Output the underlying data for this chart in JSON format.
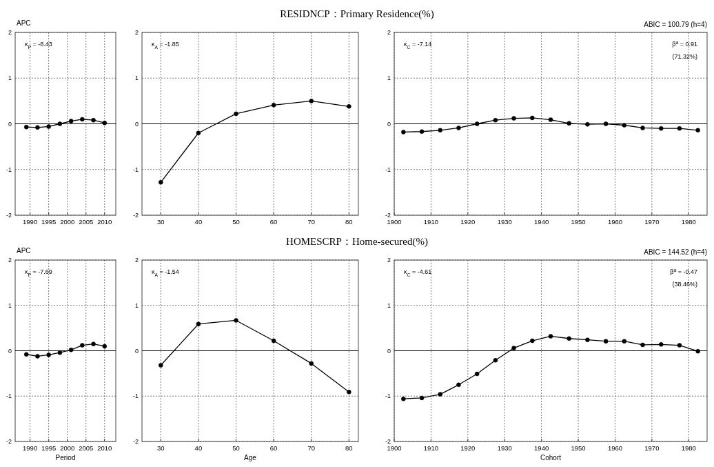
{
  "chart_data": [
    {
      "type": "line",
      "ylabel": "APC",
      "x": [
        1989,
        1992,
        1995,
        1998,
        2001,
        2004,
        2007,
        2010
      ],
      "xlim": [
        1986,
        2013
      ],
      "xticks": [
        1990,
        1995,
        2000,
        2005,
        2010
      ],
      "ylim": [
        -2,
        2
      ],
      "yticks": [
        -2,
        -1,
        0,
        1,
        2
      ],
      "grid": true,
      "marker": "circle",
      "ref_lines": [
        {
          "axis": "y",
          "value": 0
        }
      ],
      "annotations": [
        "κ$_{P}$ = -8.43"
      ],
      "series": [
        {
          "color": "#000000",
          "values": [
            -0.07,
            -0.08,
            -0.06,
            0.0,
            0.06,
            0.1,
            0.08,
            0.02
          ]
        }
      ]
    },
    {
      "type": "line",
      "title": "RESIDNCP：Primary Residence(%)",
      "x": [
        30,
        40,
        50,
        60,
        70,
        80
      ],
      "xlim": [
        25,
        82.5
      ],
      "xticks": [
        30,
        40,
        50,
        60,
        70,
        80
      ],
      "ylim": [
        -2,
        2
      ],
      "yticks": [
        -2,
        -1,
        0,
        1,
        2
      ],
      "grid": true,
      "marker": "circle",
      "ref_lines": [
        {
          "axis": "y",
          "value": 0
        }
      ],
      "annotations": [
        "κ$_{A}$ = -1.85"
      ],
      "series": [
        {
          "color": "#000000",
          "values": [
            -1.28,
            -0.2,
            0.22,
            0.41,
            0.5,
            0.38
          ]
        }
      ]
    },
    {
      "type": "line",
      "subtitle": "ABIC = 100.79 (h=4)",
      "x": [
        1902.5,
        1907.5,
        1912.5,
        1917.5,
        1922.5,
        1927.5,
        1932.5,
        1937.5,
        1942.5,
        1947.5,
        1952.5,
        1957.5,
        1962.5,
        1967.5,
        1972.5,
        1977.5,
        1982.5
      ],
      "xlim": [
        1900,
        1985
      ],
      "xticks": [
        1900,
        1910,
        1920,
        1930,
        1940,
        1950,
        1960,
        1970,
        1980
      ],
      "ylim": [
        -2,
        2
      ],
      "yticks": [
        -2,
        -1,
        0,
        1,
        2
      ],
      "grid": true,
      "marker": "circle",
      "ref_lines": [
        {
          "axis": "y",
          "value": 0
        }
      ],
      "annotations": [
        "κ$_{C}$ = -7.14",
        "β$^{a}$ = 0.91",
        "(71.32%)"
      ],
      "series": [
        {
          "color": "#000000",
          "values": [
            -0.18,
            -0.17,
            -0.14,
            -0.09,
            0.0,
            0.08,
            0.12,
            0.13,
            0.09,
            0.01,
            -0.01,
            0.0,
            -0.03,
            -0.09,
            -0.1,
            -0.1,
            -0.14
          ]
        }
      ]
    },
    {
      "type": "line",
      "ylabel": "APC",
      "xlabel": "Period",
      "x": [
        1989,
        1992,
        1995,
        1998,
        2001,
        2004,
        2007,
        2010
      ],
      "xlim": [
        1986,
        2013
      ],
      "xticks": [
        1990,
        1995,
        2000,
        2005,
        2010
      ],
      "ylim": [
        -2,
        2
      ],
      "yticks": [
        -2,
        -1,
        0,
        1,
        2
      ],
      "grid": true,
      "marker": "circle",
      "ref_lines": [
        {
          "axis": "y",
          "value": 0
        }
      ],
      "annotations": [
        "κ$_{P}$ = -7.69"
      ],
      "series": [
        {
          "color": "#000000",
          "values": [
            -0.08,
            -0.12,
            -0.09,
            -0.04,
            0.02,
            0.12,
            0.15,
            0.1
          ]
        }
      ]
    },
    {
      "type": "line",
      "title": "HOMESCRP：Home-secured(%)",
      "xlabel": "Age",
      "x": [
        30,
        40,
        50,
        60,
        70,
        80
      ],
      "xlim": [
        25,
        82.5
      ],
      "xticks": [
        30,
        40,
        50,
        60,
        70,
        80
      ],
      "ylim": [
        -2,
        2
      ],
      "yticks": [
        -2,
        -1,
        0,
        1,
        2
      ],
      "grid": true,
      "marker": "circle",
      "ref_lines": [
        {
          "axis": "y",
          "value": 0
        }
      ],
      "annotations": [
        "κ$_{A}$ = -1.54"
      ],
      "series": [
        {
          "color": "#000000",
          "values": [
            -0.32,
            0.59,
            0.67,
            0.22,
            -0.28,
            -0.91
          ]
        }
      ]
    },
    {
      "type": "line",
      "subtitle": "ABIC = 144.52 (h=4)",
      "xlabel": "Cohort",
      "x": [
        1902.5,
        1907.5,
        1912.5,
        1917.5,
        1922.5,
        1927.5,
        1932.5,
        1937.5,
        1942.5,
        1947.5,
        1952.5,
        1957.5,
        1962.5,
        1967.5,
        1972.5,
        1977.5,
        1982.5
      ],
      "xlim": [
        1900,
        1985
      ],
      "xticks": [
        1900,
        1910,
        1920,
        1930,
        1940,
        1950,
        1960,
        1970,
        1980
      ],
      "ylim": [
        -2,
        2
      ],
      "yticks": [
        -2,
        -1,
        0,
        1,
        2
      ],
      "grid": true,
      "marker": "circle",
      "ref_lines": [
        {
          "axis": "y",
          "value": 0
        }
      ],
      "annotations": [
        "κ$_{C}$ = -4.61",
        "β$^{a}$ = -0.47",
        "(38.46%)"
      ],
      "series": [
        {
          "color": "#000000",
          "values": [
            -1.06,
            -1.04,
            -0.96,
            -0.75,
            -0.51,
            -0.21,
            0.06,
            0.22,
            0.32,
            0.27,
            0.24,
            0.21,
            0.21,
            0.13,
            0.14,
            0.12,
            -0.01
          ]
        }
      ]
    }
  ]
}
